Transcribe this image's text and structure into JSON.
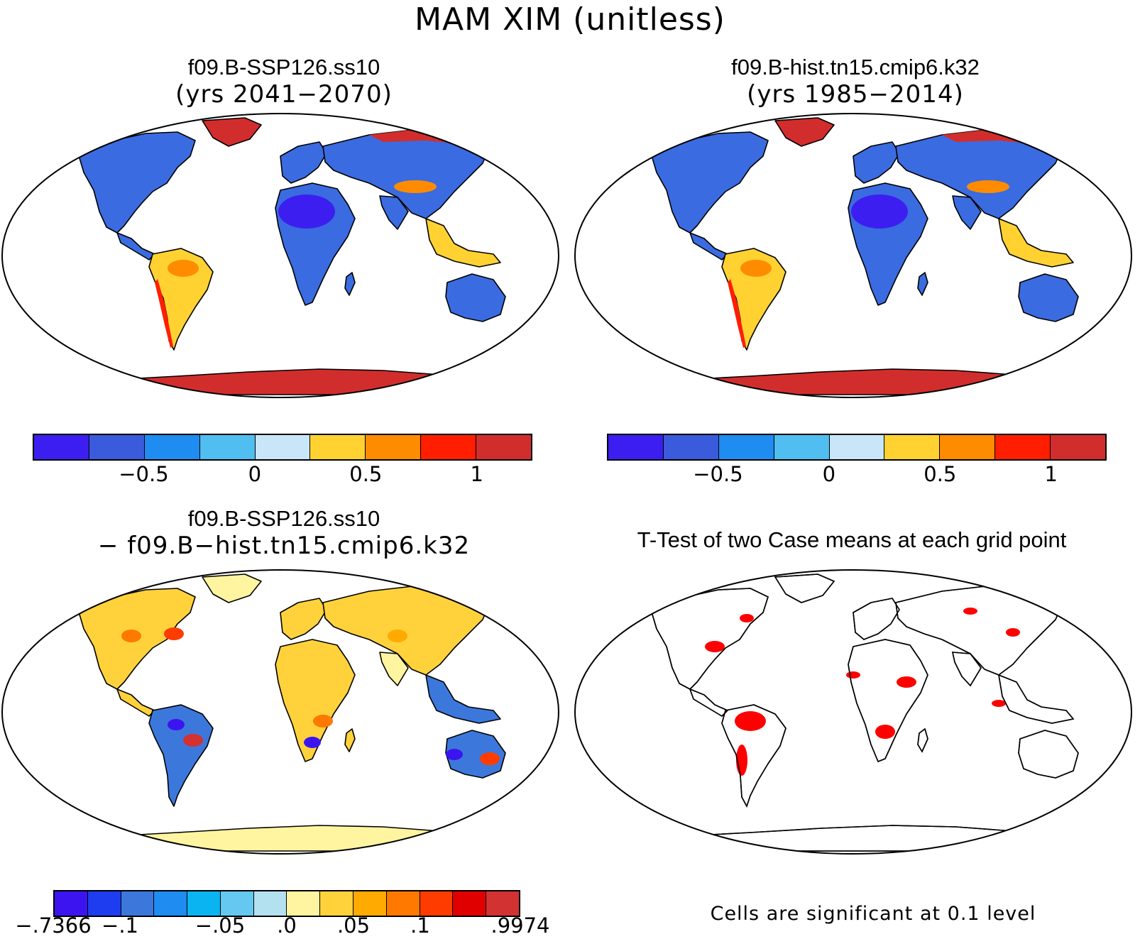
{
  "title": "MAM XIM (unitless)",
  "panels": [
    {
      "title": "f09.B-SSP126.ss10",
      "subtitle": "(yrs 2041−2070)"
    },
    {
      "title": "f09.B-hist.tn15.cmip6.k32",
      "subtitle": "(yrs 1985−2014)"
    },
    {
      "title": "f09.B-SSP126.ss10",
      "subtitle": "− f09.B−hist.tn15.cmip6.k32"
    },
    {
      "title": "T-Test of two Case means at each grid point",
      "subtitle": ""
    }
  ],
  "colorbar_main": {
    "colors": [
      "#3d1ef0",
      "#3a5bdc",
      "#1e8cf0",
      "#50bef0",
      "#c8e6f7",
      "#ffd232",
      "#ff8c00",
      "#ff1e00",
      "#d22d2d"
    ],
    "tick_labels": [
      "−0.5",
      "0",
      "0.5",
      "1"
    ]
  },
  "colorbar_diff": {
    "colors": [
      "#3c14f0",
      "#1e3cf0",
      "#3c78dc",
      "#1e8cf0",
      "#0ab4f0",
      "#64c8f0",
      "#b4e1f0",
      "#fff5a0",
      "#ffd23c",
      "#ffaa00",
      "#ff7800",
      "#ff3c00",
      "#e10000",
      "#d23232"
    ],
    "tick_labels": [
      "−.7366",
      "−.1",
      "−.05",
      ".0",
      ".05",
      ".1",
      ".9974"
    ]
  },
  "ttest_note": "Cells are significant at 0.1 level",
  "legend": {
    "land_cool": "#3a6be0",
    "land_dry": "#3d1ef0",
    "hot": "#d22d2d",
    "warm": "#ffd232",
    "diff_warm": "#ffd23c",
    "diff_light": "#fff5a0",
    "diff_blue": "#3c78dc",
    "significant": "#ff0000"
  }
}
